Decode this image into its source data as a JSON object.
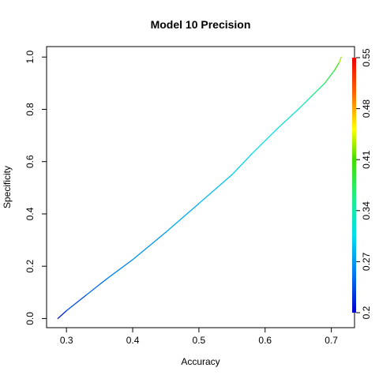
{
  "chart_data": {
    "type": "line",
    "title": "Model 10 Precision",
    "xlabel": "Accuracy",
    "ylabel": "Specificity",
    "xlim": [
      0.27,
      0.735
    ],
    "ylim": [
      -0.035,
      1.04
    ],
    "x_ticks": [
      0.3,
      0.4,
      0.5,
      0.6,
      0.7
    ],
    "x_tick_labels": [
      "0.3",
      "0.4",
      "0.5",
      "0.6",
      "0.7"
    ],
    "y_ticks": [
      0.0,
      0.2,
      0.4,
      0.6,
      0.8,
      1.0
    ],
    "y_tick_labels": [
      "0.0",
      "0.2",
      "0.4",
      "0.6",
      "0.8",
      "1.0"
    ],
    "grid": false,
    "color_scale": {
      "label": "",
      "range": [
        0.2,
        0.55
      ],
      "ticks": [
        0.2,
        0.27,
        0.34,
        0.41,
        0.48,
        0.55
      ],
      "tick_labels": [
        "0.2",
        "0.27",
        "0.34",
        "0.41",
        "0.48",
        "0.55"
      ],
      "colors": [
        "#0000cc",
        "#0077ee",
        "#00ddee",
        "#22ee88",
        "#44dd00",
        "#ffff00",
        "#ff6600",
        "#ee0000"
      ]
    },
    "series": [
      {
        "points": [
          {
            "x": 0.287,
            "y": 0.0,
            "c": 0.2
          },
          {
            "x": 0.3,
            "y": 0.03,
            "c": 0.225
          },
          {
            "x": 0.33,
            "y": 0.09,
            "c": 0.24
          },
          {
            "x": 0.36,
            "y": 0.15,
            "c": 0.25
          },
          {
            "x": 0.4,
            "y": 0.225,
            "c": 0.26
          },
          {
            "x": 0.45,
            "y": 0.33,
            "c": 0.27
          },
          {
            "x": 0.5,
            "y": 0.44,
            "c": 0.28
          },
          {
            "x": 0.55,
            "y": 0.55,
            "c": 0.29
          },
          {
            "x": 0.58,
            "y": 0.63,
            "c": 0.3
          },
          {
            "x": 0.62,
            "y": 0.73,
            "c": 0.31
          },
          {
            "x": 0.65,
            "y": 0.8,
            "c": 0.32
          },
          {
            "x": 0.67,
            "y": 0.85,
            "c": 0.34
          },
          {
            "x": 0.69,
            "y": 0.9,
            "c": 0.36
          },
          {
            "x": 0.705,
            "y": 0.95,
            "c": 0.38
          },
          {
            "x": 0.712,
            "y": 0.98,
            "c": 0.41
          },
          {
            "x": 0.715,
            "y": 1.0,
            "c": 0.44
          }
        ]
      }
    ]
  }
}
